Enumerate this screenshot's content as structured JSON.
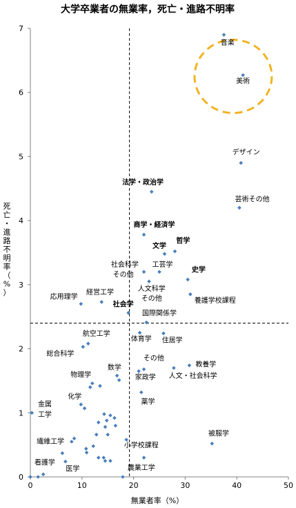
{
  "chart_data": {
    "type": "scatter",
    "title": "大学卒業者の無業率，死亡・進路不明率",
    "xlabel": "無業者率（%）",
    "ylabel_chars": [
      "死",
      "亡",
      "・",
      "進",
      "路",
      "不",
      "明",
      "率",
      "（",
      "%",
      "）"
    ],
    "xlim": [
      0,
      50
    ],
    "ylim": [
      0,
      7
    ],
    "xticks": [
      0,
      10,
      20,
      30,
      40,
      50
    ],
    "yticks": [
      0,
      1,
      2,
      3,
      4,
      5,
      6,
      7
    ],
    "grid": false,
    "marker_color": "#4a7ebb",
    "reference_lines": {
      "x": 19.2,
      "y": 2.4,
      "style": "dashed"
    },
    "highlight_ellipse": {
      "color": "#f0b323",
      "style": "dashed"
    },
    "points": [
      {
        "x": 37.5,
        "y": 6.9,
        "label": "音楽"
      },
      {
        "x": 41.2,
        "y": 6.27,
        "label": "美術"
      },
      {
        "x": 40.8,
        "y": 4.9,
        "label": "デザイン"
      },
      {
        "x": 40.5,
        "y": 4.2,
        "label": "芸術その他"
      },
      {
        "x": 23.5,
        "y": 4.45,
        "label": "法学・政治学",
        "color": "#0aa050"
      },
      {
        "x": 22.0,
        "y": 3.78,
        "label": "商学・経済学",
        "color": "#0aa050"
      },
      {
        "x": 28.0,
        "y": 3.52,
        "label": "哲学",
        "color": "#dd0000"
      },
      {
        "x": 26.0,
        "y": 3.48,
        "label": "文学",
        "color": "#dd0000"
      },
      {
        "x": 30.5,
        "y": 3.08,
        "label": "史学",
        "color": "#dd0000"
      },
      {
        "x": 19.0,
        "y": 2.56,
        "label": "社会学",
        "color": "#0aa050"
      },
      {
        "x": 22.0,
        "y": 3.2
      },
      {
        "x": 25.0,
        "y": 3.2
      },
      {
        "x": 23.0,
        "y": 3.05
      },
      {
        "x": 31.0,
        "y": 2.85,
        "label": "養護学校課程"
      },
      {
        "x": 9.8,
        "y": 2.7,
        "label": "応用理学"
      },
      {
        "x": 13.8,
        "y": 2.73
      },
      {
        "x": 22.5,
        "y": 2.41,
        "label": "国際関係学"
      },
      {
        "x": 21.2,
        "y": 2.25
      },
      {
        "x": 25.8,
        "y": 2.24
      },
      {
        "x": 11.2,
        "y": 2.08
      },
      {
        "x": 10.2,
        "y": 2.03
      },
      {
        "x": 30.8,
        "y": 1.74,
        "label": "教養学"
      },
      {
        "x": 27.8,
        "y": 1.7
      },
      {
        "x": 22.0,
        "y": 1.68
      },
      {
        "x": 21.0,
        "y": 1.65
      },
      {
        "x": 16.8,
        "y": 1.58
      },
      {
        "x": 17.2,
        "y": 1.51
      },
      {
        "x": 12.0,
        "y": 1.46
      },
      {
        "x": 11.6,
        "y": 1.4
      },
      {
        "x": 13.5,
        "y": 1.42
      },
      {
        "x": 21.5,
        "y": 1.32
      },
      {
        "x": 9.8,
        "y": 1.13
      },
      {
        "x": 10.5,
        "y": 1.07
      },
      {
        "x": 0.3,
        "y": 1.0
      },
      {
        "x": 14.3,
        "y": 0.98
      },
      {
        "x": 15.5,
        "y": 0.96
      },
      {
        "x": 16.3,
        "y": 0.92
      },
      {
        "x": 14.8,
        "y": 0.88
      },
      {
        "x": 13.2,
        "y": 0.85
      },
      {
        "x": 16.5,
        "y": 0.8
      },
      {
        "x": 14.5,
        "y": 0.78
      },
      {
        "x": 12.8,
        "y": 0.66
      },
      {
        "x": 15.0,
        "y": 0.66
      },
      {
        "x": 8.5,
        "y": 0.6
      },
      {
        "x": 8.0,
        "y": 0.55
      },
      {
        "x": 18.6,
        "y": 0.58
      },
      {
        "x": 35.2,
        "y": 0.52
      },
      {
        "x": 12.2,
        "y": 0.48
      },
      {
        "x": 10.8,
        "y": 0.44
      },
      {
        "x": 10.9,
        "y": 0.38
      },
      {
        "x": 6.2,
        "y": 0.37
      },
      {
        "x": 14.2,
        "y": 0.3
      },
      {
        "x": 13.2,
        "y": 0.3
      },
      {
        "x": 14.5,
        "y": 0.25
      },
      {
        "x": 15.5,
        "y": 0.25
      },
      {
        "x": 6.8,
        "y": 0.24
      },
      {
        "x": 2.5,
        "y": 0.04
      },
      {
        "x": 1.5,
        "y": 0.0
      },
      {
        "x": 0.0,
        "y": 0.0
      },
      {
        "x": 17.9,
        "y": 0.0
      },
      {
        "x": 22.0,
        "y": 0.3
      }
    ],
    "labels": [
      {
        "text": "音楽",
        "x": 38.2,
        "y": 6.74
      },
      {
        "text": "美術",
        "x": 41.2,
        "y": 6.14
      },
      {
        "text": "デザイン",
        "x": 41.8,
        "y": 5.03
      },
      {
        "text": "芸術その他",
        "x": 43.0,
        "y": 4.3
      },
      {
        "text": "法学・政治学",
        "x": 21.8,
        "y": 4.56,
        "color": "#0aa050",
        "bold": true
      },
      {
        "text": "商学・経済学",
        "x": 24.0,
        "y": 3.9,
        "color": "#0aa050",
        "bold": true
      },
      {
        "text": "文学",
        "x": 25.0,
        "y": 3.57,
        "color": "#dd0000",
        "bold": true
      },
      {
        "text": "哲学",
        "x": 29.6,
        "y": 3.65,
        "color": "#dd0000",
        "bold": true
      },
      {
        "text": "史学",
        "x": 32.6,
        "y": 3.2,
        "color": "#dd0000",
        "bold": true
      },
      {
        "text": "社会科学",
        "x": 18.3,
        "y": 3.28
      },
      {
        "text": "その他",
        "x": 18.0,
        "y": 3.12
      },
      {
        "text": "工芸学",
        "x": 25.6,
        "y": 3.28
      },
      {
        "text": "人文科学",
        "x": 23.5,
        "y": 2.9
      },
      {
        "text": "その他",
        "x": 23.5,
        "y": 2.75
      },
      {
        "text": "養護学校課程",
        "x": 35.8,
        "y": 2.72
      },
      {
        "text": "応用理学",
        "x": 6.5,
        "y": 2.78
      },
      {
        "text": "経営工学",
        "x": 13.5,
        "y": 2.85
      },
      {
        "text": "社会学",
        "x": 18.0,
        "y": 2.66,
        "color": "#0aa050",
        "bold": true
      },
      {
        "text": "国際関係学",
        "x": 25.0,
        "y": 2.52
      },
      {
        "text": "航空工学",
        "x": 12.8,
        "y": 2.2
      },
      {
        "text": "体育学",
        "x": 21.5,
        "y": 2.12
      },
      {
        "text": "住居学",
        "x": 27.5,
        "y": 2.1
      },
      {
        "text": "総合科学",
        "x": 5.8,
        "y": 1.89
      },
      {
        "text": "その他",
        "x": 23.9,
        "y": 1.82
      },
      {
        "text": "教養学",
        "x": 34.0,
        "y": 1.72
      },
      {
        "text": "数学",
        "x": 16.3,
        "y": 1.67
      },
      {
        "text": "物理学",
        "x": 9.8,
        "y": 1.56
      },
      {
        "text": "家政学",
        "x": 22.3,
        "y": 1.52
      },
      {
        "text": "人文・社会科学",
        "x": 31.5,
        "y": 1.54
      },
      {
        "text": "化学",
        "x": 8.6,
        "y": 1.22
      },
      {
        "text": "薬学",
        "x": 22.8,
        "y": 1.14
      },
      {
        "text": "金属",
        "x": 2.8,
        "y": 1.1
      },
      {
        "text": "工学",
        "x": 2.8,
        "y": 0.94
      },
      {
        "text": "被服学",
        "x": 36.5,
        "y": 0.64
      },
      {
        "text": "繊維工学",
        "x": 3.9,
        "y": 0.52
      },
      {
        "text": "小学校課程",
        "x": 21.5,
        "y": 0.46
      },
      {
        "text": "看護学",
        "x": 2.8,
        "y": 0.19
      },
      {
        "text": "医学",
        "x": 8.2,
        "y": 0.09
      },
      {
        "text": "農業工学",
        "x": 21.5,
        "y": 0.11
      }
    ]
  }
}
